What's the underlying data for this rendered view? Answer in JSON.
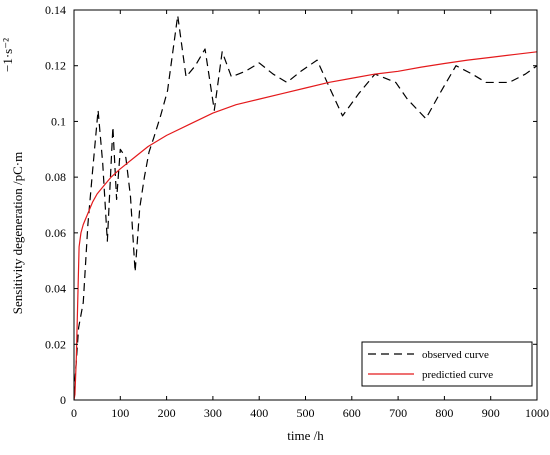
{
  "chart_data": {
    "type": "line",
    "title": "",
    "xlabel": "time /h",
    "ylabel": "Sensitivity degeneration /pC·m",
    "ylabel_superscript": "−1·s⁻²",
    "xlim": [
      0,
      1000
    ],
    "ylim": [
      0,
      0.14
    ],
    "x_ticks": [
      0,
      100,
      200,
      300,
      400,
      500,
      600,
      700,
      800,
      900,
      1000
    ],
    "y_ticks": [
      0,
      0.02,
      0.04,
      0.06,
      0.08,
      0.1,
      0.12,
      0.14
    ],
    "x_tick_labels": [
      "0",
      "100",
      "200",
      "300",
      "400",
      "500",
      "600",
      "700",
      "800",
      "900",
      "1000"
    ],
    "y_tick_labels": [
      "0",
      "0.02",
      "0.04",
      "0.06",
      "0.08",
      "0.1",
      "0.12",
      "0.14"
    ],
    "grid": false,
    "legend_position": "bottom-right",
    "series": [
      {
        "name": "observed curve",
        "color": "#000000",
        "style": "dashed",
        "points": [
          [
            0,
            0.002
          ],
          [
            10,
            0.026
          ],
          [
            20,
            0.035
          ],
          [
            30,
            0.063
          ],
          [
            40,
            0.082
          ],
          [
            52,
            0.104
          ],
          [
            62,
            0.085
          ],
          [
            72,
            0.057
          ],
          [
            84,
            0.098
          ],
          [
            92,
            0.072
          ],
          [
            100,
            0.09
          ],
          [
            112,
            0.087
          ],
          [
            122,
            0.073
          ],
          [
            132,
            0.046
          ],
          [
            142,
            0.069
          ],
          [
            152,
            0.08
          ],
          [
            162,
            0.089
          ],
          [
            172,
            0.094
          ],
          [
            187,
            0.102
          ],
          [
            202,
            0.111
          ],
          [
            224,
            0.138
          ],
          [
            242,
            0.116
          ],
          [
            262,
            0.12
          ],
          [
            283,
            0.126
          ],
          [
            303,
            0.104
          ],
          [
            320,
            0.125
          ],
          [
            340,
            0.116
          ],
          [
            370,
            0.118
          ],
          [
            400,
            0.121
          ],
          [
            430,
            0.117
          ],
          [
            460,
            0.114
          ],
          [
            490,
            0.118
          ],
          [
            525,
            0.122
          ],
          [
            555,
            0.111
          ],
          [
            580,
            0.102
          ],
          [
            615,
            0.11
          ],
          [
            650,
            0.117
          ],
          [
            695,
            0.114
          ],
          [
            720,
            0.108
          ],
          [
            760,
            0.101
          ],
          [
            790,
            0.11
          ],
          [
            825,
            0.12
          ],
          [
            860,
            0.117
          ],
          [
            890,
            0.114
          ],
          [
            940,
            0.114
          ],
          [
            975,
            0.117
          ],
          [
            1000,
            0.12
          ]
        ]
      },
      {
        "name": "predictied curve",
        "color": "#e41a1c",
        "style": "solid",
        "points": [
          [
            0,
            0.0
          ],
          [
            2,
            0.002
          ],
          [
            5,
            0.015
          ],
          [
            8,
            0.035
          ],
          [
            11,
            0.055
          ],
          [
            15,
            0.06
          ],
          [
            20,
            0.063
          ],
          [
            30,
            0.067
          ],
          [
            40,
            0.071
          ],
          [
            50,
            0.074
          ],
          [
            60,
            0.076
          ],
          [
            80,
            0.08
          ],
          [
            100,
            0.083
          ],
          [
            130,
            0.087
          ],
          [
            160,
            0.091
          ],
          [
            200,
            0.095
          ],
          [
            250,
            0.099
          ],
          [
            300,
            0.103
          ],
          [
            350,
            0.106
          ],
          [
            400,
            0.108
          ],
          [
            450,
            0.11
          ],
          [
            500,
            0.112
          ],
          [
            550,
            0.114
          ],
          [
            600,
            0.1155
          ],
          [
            650,
            0.117
          ],
          [
            700,
            0.118
          ],
          [
            750,
            0.1195
          ],
          [
            800,
            0.1208
          ],
          [
            850,
            0.122
          ],
          [
            900,
            0.123
          ],
          [
            950,
            0.124
          ],
          [
            1000,
            0.125
          ]
        ]
      }
    ]
  }
}
